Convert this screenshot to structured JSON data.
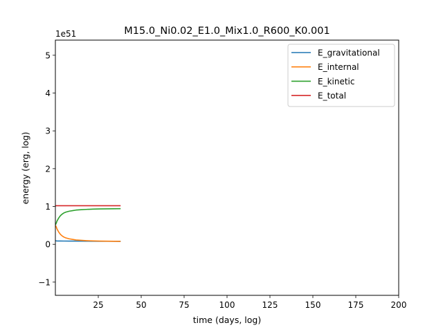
{
  "chart_data": {
    "type": "line",
    "title": "M15.0_Ni0.02_E1.0_Mix1.0_R600_K0.001",
    "xlabel": "time (days, log)",
    "ylabel": "energy (erg, log)",
    "y_offset_label": "1e51",
    "xlim": [
      0,
      200
    ],
    "ylim": [
      -1.35,
      5.4
    ],
    "x_ticks": [
      25,
      50,
      75,
      100,
      125,
      150,
      175,
      200
    ],
    "x_tick_labels": [
      "25",
      "50",
      "75",
      "100",
      "125",
      "150",
      "175",
      "200"
    ],
    "y_ticks": [
      -1,
      0,
      1,
      2,
      3,
      4,
      5
    ],
    "y_tick_labels": [
      "−1",
      "0",
      "1",
      "2",
      "3",
      "4",
      "5"
    ],
    "grid": false,
    "legend_position": "top-right",
    "series": [
      {
        "name": "E_gravitational",
        "color": "#1f77b4",
        "x": [
          0.1,
          0.5,
          1,
          2,
          3,
          5,
          8,
          12,
          18,
          25,
          32,
          38
        ],
        "y": [
          0.095,
          0.09,
          0.088,
          0.087,
          0.087,
          0.086,
          0.085,
          0.084,
          0.082,
          0.08,
          0.079,
          0.078
        ]
      },
      {
        "name": "E_internal",
        "color": "#ff7f0e",
        "x": [
          0.1,
          0.5,
          1,
          2,
          3,
          4,
          5,
          6,
          8,
          10,
          12,
          15,
          18,
          22,
          26,
          30,
          34,
          38
        ],
        "y": [
          0.5,
          0.46,
          0.4,
          0.32,
          0.26,
          0.22,
          0.19,
          0.17,
          0.145,
          0.13,
          0.115,
          0.105,
          0.097,
          0.09,
          0.085,
          0.082,
          0.08,
          0.078
        ]
      },
      {
        "name": "E_kinetic",
        "color": "#2ca02c",
        "x": [
          0.1,
          0.5,
          1,
          2,
          3,
          4,
          5,
          6,
          8,
          10,
          12,
          15,
          18,
          22,
          26,
          30,
          34,
          38
        ],
        "y": [
          0.52,
          0.56,
          0.62,
          0.7,
          0.76,
          0.8,
          0.83,
          0.85,
          0.875,
          0.89,
          0.905,
          0.915,
          0.923,
          0.93,
          0.935,
          0.938,
          0.94,
          0.942
        ]
      },
      {
        "name": "E_total",
        "color": "#d62728",
        "x": [
          0.1,
          5,
          10,
          20,
          30,
          38
        ],
        "y": [
          1.02,
          1.02,
          1.02,
          1.02,
          1.02,
          1.02
        ]
      }
    ]
  }
}
